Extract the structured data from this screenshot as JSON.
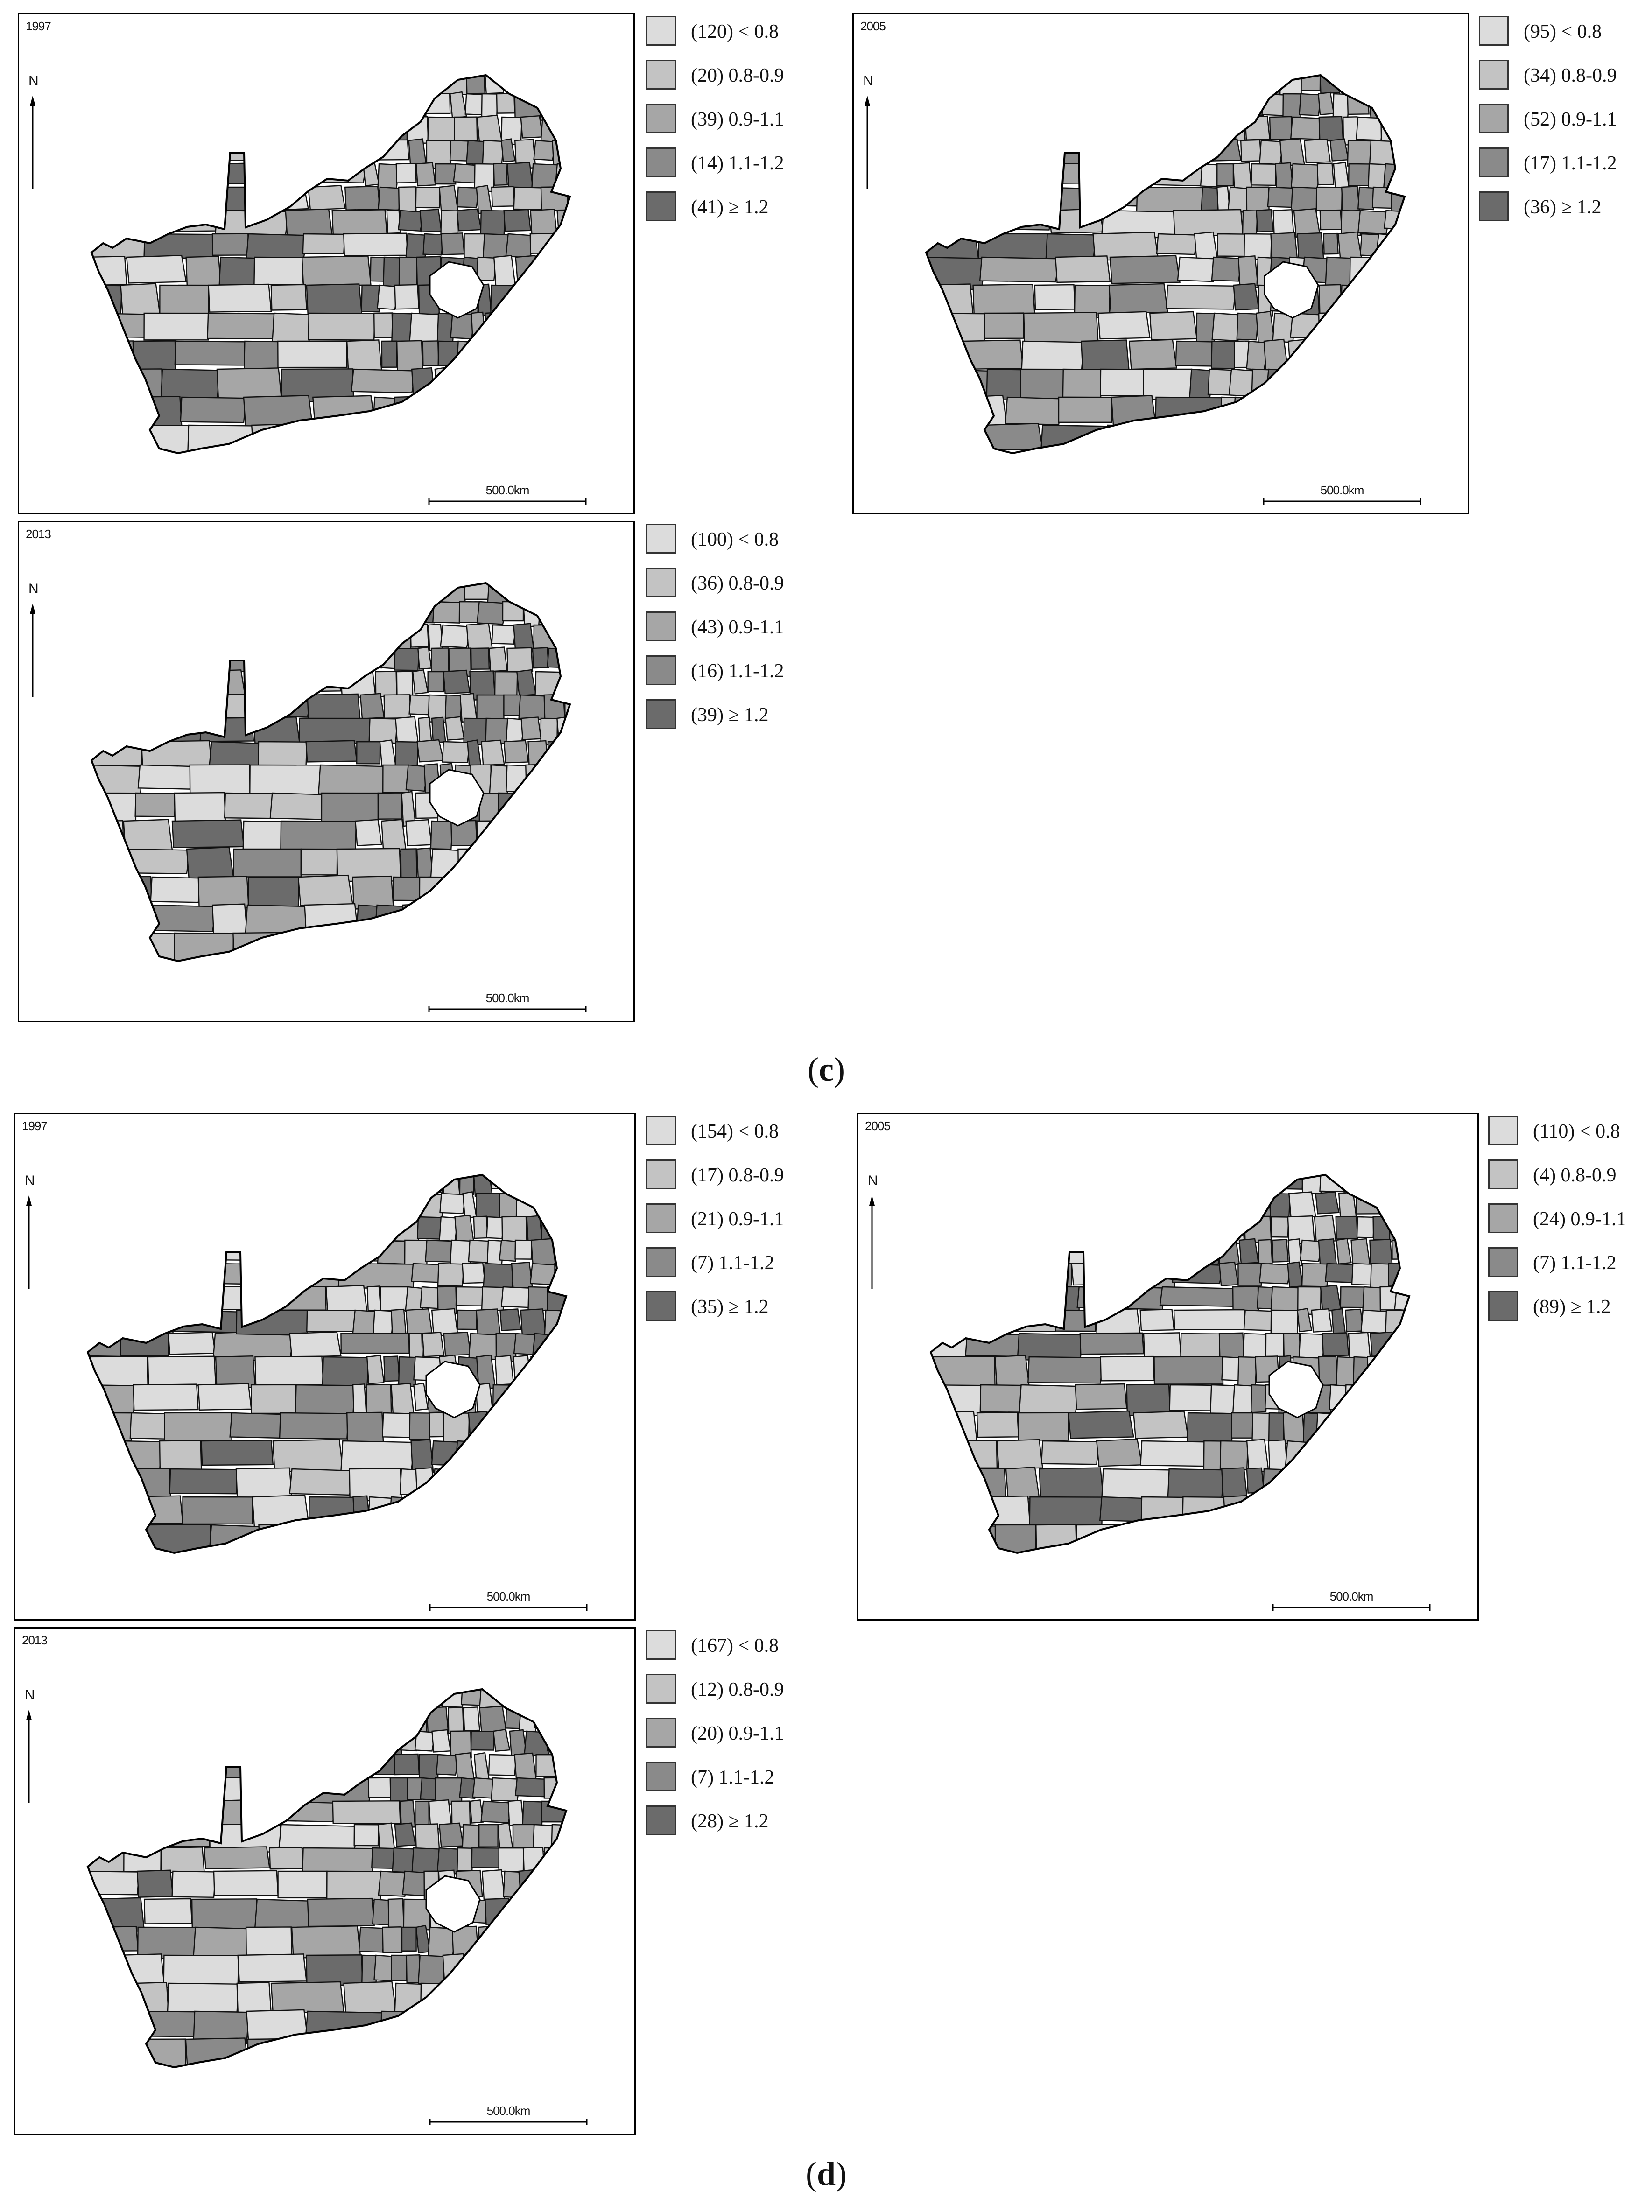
{
  "figure": {
    "captions": [
      {
        "open": "(",
        "letter": "c",
        "close": ")"
      },
      {
        "open": "(",
        "letter": "d",
        "close": ")"
      }
    ],
    "panels": [
      {
        "year": "1997",
        "north_label": "N",
        "scale_text": "500.0km",
        "legend": [
          {
            "count": "(120)",
            "range": "< 0.8",
            "color": "#dcdcdc"
          },
          {
            "count": "(20)",
            "range": "0.8-0.9",
            "color": "#c3c3c3"
          },
          {
            "count": "(39)",
            "range": "0.9-1.1",
            "color": "#a6a6a6"
          },
          {
            "count": "(14)",
            "range": "1.1-1.2",
            "color": "#8a8a8a"
          },
          {
            "count": "(41)",
            "range": "≥ 1.2",
            "color": "#6b6b6b"
          }
        ]
      },
      {
        "year": "2005",
        "north_label": "N",
        "scale_text": "500.0km",
        "legend": [
          {
            "count": "(95)",
            "range": "< 0.8",
            "color": "#dcdcdc"
          },
          {
            "count": "(34)",
            "range": "0.8-0.9",
            "color": "#c3c3c3"
          },
          {
            "count": "(52)",
            "range": "0.9-1.1",
            "color": "#a6a6a6"
          },
          {
            "count": "(17)",
            "range": "1.1-1.2",
            "color": "#8a8a8a"
          },
          {
            "count": "(36)",
            "range": "≥ 1.2",
            "color": "#6b6b6b"
          }
        ]
      },
      {
        "year": "2013",
        "north_label": "N",
        "scale_text": "500.0km",
        "legend": [
          {
            "count": "(100)",
            "range": "< 0.8",
            "color": "#dcdcdc"
          },
          {
            "count": "(36)",
            "range": "0.8-0.9",
            "color": "#c3c3c3"
          },
          {
            "count": "(43)",
            "range": "0.9-1.1",
            "color": "#a6a6a6"
          },
          {
            "count": "(16)",
            "range": "1.1-1.2",
            "color": "#8a8a8a"
          },
          {
            "count": "(39)",
            "range": "≥ 1.2",
            "color": "#6b6b6b"
          }
        ]
      },
      {
        "year": "1997",
        "north_label": "N",
        "scale_text": "500.0km",
        "legend": [
          {
            "count": "(154)",
            "range": "< 0.8",
            "color": "#dcdcdc"
          },
          {
            "count": "(17)",
            "range": "0.8-0.9",
            "color": "#c3c3c3"
          },
          {
            "count": "(21)",
            "range": "0.9-1.1",
            "color": "#a6a6a6"
          },
          {
            "count": "(7)",
            "range": "1.1-1.2",
            "color": "#8a8a8a"
          },
          {
            "count": "(35)",
            "range": "≥ 1.2",
            "color": "#6b6b6b"
          }
        ]
      },
      {
        "year": "2005",
        "north_label": "N",
        "scale_text": "500.0km",
        "legend": [
          {
            "count": "(110)",
            "range": "< 0.8",
            "color": "#dcdcdc"
          },
          {
            "count": "(4)",
            "range": "0.8-0.9",
            "color": "#c3c3c3"
          },
          {
            "count": "(24)",
            "range": "0.9-1.1",
            "color": "#a6a6a6"
          },
          {
            "count": "(7)",
            "range": "1.1-1.2",
            "color": "#8a8a8a"
          },
          {
            "count": "(89)",
            "range": "≥ 1.2",
            "color": "#6b6b6b"
          }
        ]
      },
      {
        "year": "2013",
        "north_label": "N",
        "scale_text": "500.0km",
        "legend": [
          {
            "count": "(167)",
            "range": "< 0.8",
            "color": "#dcdcdc"
          },
          {
            "count": "(12)",
            "range": "0.8-0.9",
            "color": "#c3c3c3"
          },
          {
            "count": "(20)",
            "range": "0.9-1.1",
            "color": "#a6a6a6"
          },
          {
            "count": "(7)",
            "range": "1.1-1.2",
            "color": "#8a8a8a"
          },
          {
            "count": "(28)",
            "range": "≥ 1.2",
            "color": "#6b6b6b"
          }
        ]
      }
    ]
  }
}
